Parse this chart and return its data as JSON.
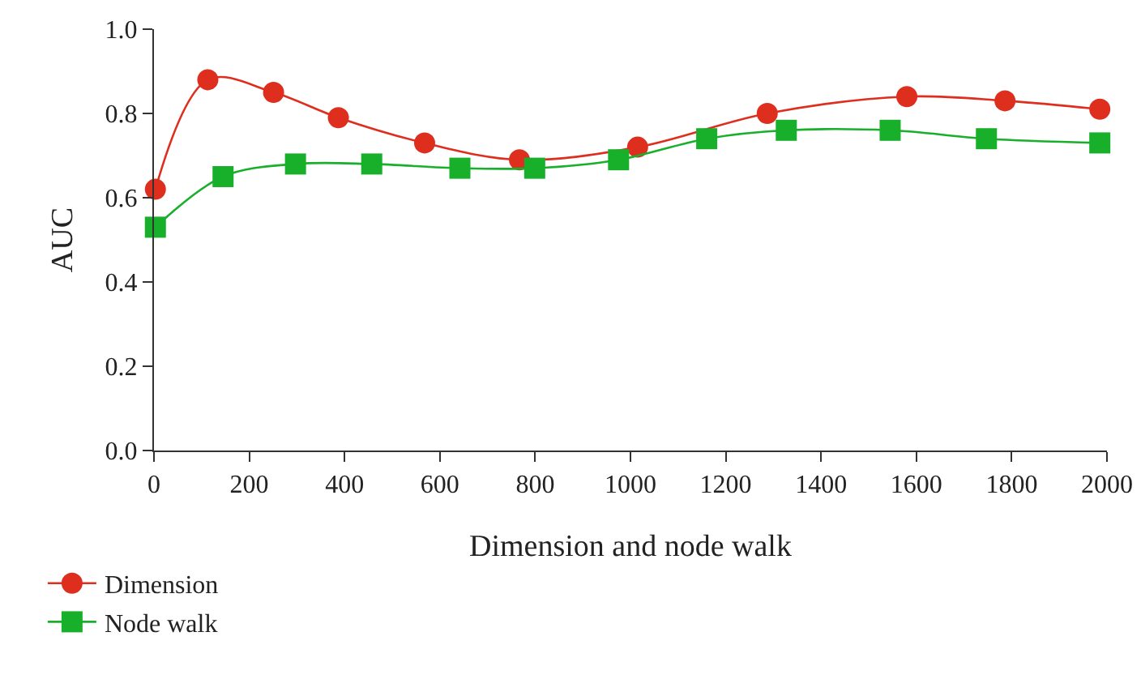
{
  "chart_data": {
    "type": "line",
    "xlabel": "Dimension and node walk",
    "ylabel": "AUC",
    "xlim": [
      0,
      2000
    ],
    "xticks": [
      0,
      200,
      400,
      600,
      800,
      1000,
      1200,
      1400,
      1600,
      1800,
      2000
    ],
    "ylim": [
      0,
      1
    ],
    "yticks": [
      {
        "value": 0,
        "label": "0.0"
      },
      {
        "value": 0.2,
        "label": "0.2"
      },
      {
        "value": 0.4,
        "label": "0.4"
      },
      {
        "value": 0.6,
        "label": "0.6"
      },
      {
        "value": 0.8,
        "label": "0.8"
      },
      {
        "value": 1,
        "label": "1.0"
      }
    ],
    "grid": false,
    "legend": "bottom left",
    "line_style": "solid",
    "series": [
      {
        "name": "Dimension",
        "color": "#dd2e1e",
        "marker": "circle",
        "x": [
          3,
          113,
          251,
          387,
          568,
          767,
          1015,
          1287,
          1580,
          1786,
          1985
        ],
        "values": [
          0.62,
          0.88,
          0.85,
          0.79,
          0.73,
          0.69,
          0.72,
          0.8,
          0.84,
          0.83,
          0.81
        ]
      },
      {
        "name": "Node walk",
        "color": "#18b02a",
        "marker": "square",
        "x": [
          3,
          145,
          297,
          457,
          642,
          799,
          975,
          1160,
          1327,
          1545,
          1747,
          1985
        ],
        "values": [
          0.53,
          0.65,
          0.68,
          0.68,
          0.67,
          0.67,
          0.69,
          0.74,
          0.76,
          0.76,
          0.74,
          0.73
        ]
      }
    ]
  }
}
